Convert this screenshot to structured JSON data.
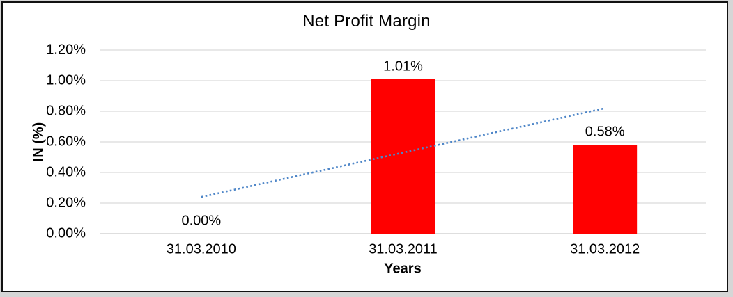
{
  "chart_data": {
    "type": "bar",
    "title": "Net Profit Margin",
    "xlabel": "Years",
    "ylabel": "IN (%)",
    "categories": [
      "31.03.2010",
      "31.03.2011",
      "31.03.2012"
    ],
    "values": [
      0.0,
      1.01,
      0.58
    ],
    "data_labels": [
      "0.00%",
      "1.01%",
      "0.58%"
    ],
    "y_ticks": [
      "0.00%",
      "0.20%",
      "0.40%",
      "0.60%",
      "0.80%",
      "1.00%",
      "1.20%"
    ],
    "ylim": [
      0,
      1.2
    ],
    "grid": true,
    "legend": "none",
    "bar_color": "#ff0000",
    "gridline_color": "#d9d9d9",
    "axis_line_color": "#c9c9c9",
    "text_color": "#000000",
    "trendline": {
      "type": "linear",
      "style": "dotted",
      "color": "#4e86c8",
      "y_start": 0.24,
      "y_end": 0.82
    }
  }
}
